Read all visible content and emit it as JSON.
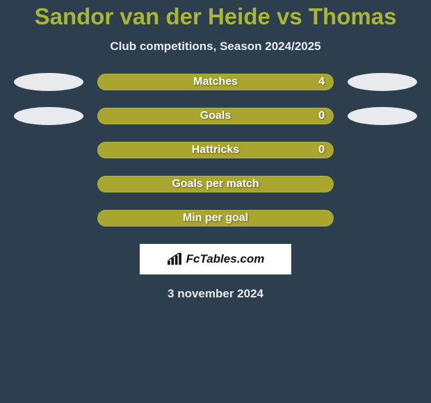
{
  "title": "Sandor van der Heide vs Thomas",
  "subtitle": "Club competitions, Season 2024/2025",
  "date": "3 november 2024",
  "logo_text": "FcTables.com",
  "bar_colors": {
    "fill": "#a9a52f",
    "border": "#aab635"
  },
  "background_color": "#2d3e4f",
  "title_color": "#aab635",
  "text_color": "#e8eaed",
  "rows": [
    {
      "label": "Matches",
      "value": "4",
      "show_value": true,
      "left_ellipse": true,
      "right_ellipse": true
    },
    {
      "label": "Goals",
      "value": "0",
      "show_value": true,
      "left_ellipse": true,
      "right_ellipse": true
    },
    {
      "label": "Hattricks",
      "value": "0",
      "show_value": true,
      "left_ellipse": false,
      "right_ellipse": false
    },
    {
      "label": "Goals per match",
      "value": "",
      "show_value": false,
      "left_ellipse": false,
      "right_ellipse": false
    },
    {
      "label": "Min per goal",
      "value": "",
      "show_value": false,
      "left_ellipse": false,
      "right_ellipse": false
    }
  ]
}
